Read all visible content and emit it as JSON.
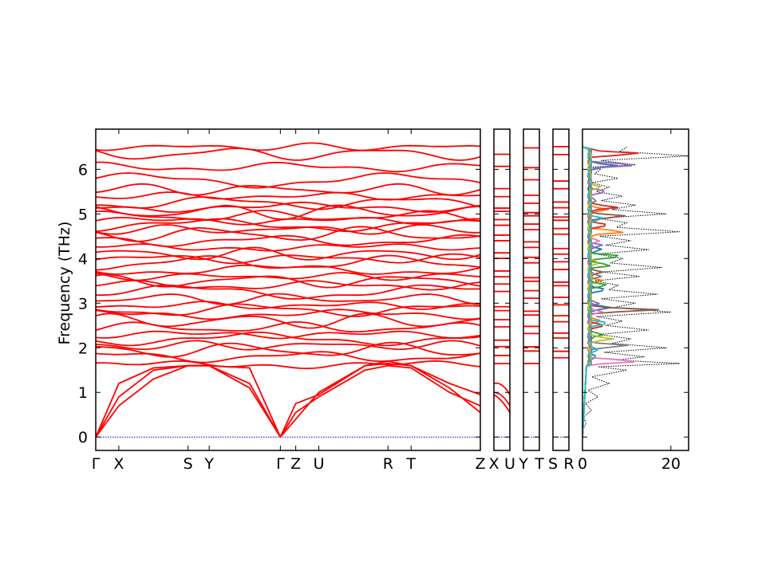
{
  "chart_data": [
    {
      "type": "line",
      "panel": "band-main",
      "ylabel": "Frequency (THz)",
      "ylim": [
        -0.3,
        6.9
      ],
      "yticks": [
        0,
        1,
        2,
        3,
        4,
        5,
        6
      ],
      "x_segments": [
        "Γ",
        "X",
        "S",
        "Y",
        "Γ",
        "Z",
        "U",
        "R",
        "T",
        "Z"
      ],
      "high_symmetry_positions": [
        0,
        0.06,
        0.24,
        0.295,
        0.48,
        0.52,
        0.58,
        0.76,
        0.82,
        1.0
      ],
      "line_color": "#ff0000",
      "zero_line_color": "#0000cc",
      "acoustic_branches": {
        "x": [
          0,
          0.06,
          0.15,
          0.24,
          0.295,
          0.4,
          0.48,
          0.52,
          0.58,
          0.7,
          0.76,
          0.82,
          0.92,
          1.0
        ],
        "series": [
          {
            "values": [
              0.0,
              1.2,
              1.55,
              1.6,
              1.6,
              1.55,
              0.0,
              0.75,
              0.95,
              1.6,
              1.65,
              1.6,
              1.1,
              0.55
            ]
          },
          {
            "values": [
              0.0,
              0.9,
              1.5,
              1.6,
              1.6,
              1.2,
              0.0,
              0.55,
              0.9,
              1.5,
              1.6,
              1.55,
              1.0,
              0.7
            ]
          },
          {
            "values": [
              0.0,
              0.7,
              1.3,
              1.6,
              1.6,
              1.1,
              0.0,
              0.4,
              1.0,
              1.6,
              1.7,
              1.6,
              1.2,
              0.95
            ]
          }
        ]
      },
      "optical_levels": [
        1.62,
        1.8,
        1.95,
        2.05,
        2.2,
        2.3,
        2.45,
        2.6,
        2.75,
        2.85,
        2.95,
        3.1,
        3.25,
        3.4,
        3.5,
        3.6,
        3.75,
        3.9,
        4.0,
        4.1,
        4.25,
        4.4,
        4.55,
        4.65,
        4.75,
        4.85,
        4.95,
        5.05,
        5.15,
        5.25,
        5.4,
        5.55,
        5.75,
        6.05,
        6.35,
        6.5
      ]
    },
    {
      "type": "line",
      "panel": "band-XU",
      "x_segments": [
        "X",
        "U"
      ]
    },
    {
      "type": "line",
      "panel": "band-YT",
      "x_segments": [
        "Y",
        "T"
      ]
    },
    {
      "type": "line",
      "panel": "band-SR",
      "x_segments": [
        "S",
        "R"
      ]
    },
    {
      "type": "line",
      "panel": "dos",
      "xlim": [
        0,
        24
      ],
      "xticks": [
        0,
        20
      ],
      "total_dos_color": "#000000",
      "total_dos": {
        "freq": [
          0.0,
          0.3,
          0.6,
          0.9,
          1.2,
          1.5,
          1.65,
          1.8,
          2.0,
          2.2,
          2.4,
          2.6,
          2.8,
          3.0,
          3.2,
          3.4,
          3.6,
          3.8,
          4.0,
          4.2,
          4.4,
          4.6,
          4.8,
          5.0,
          5.2,
          5.4,
          5.6,
          5.8,
          6.0,
          6.1,
          6.3,
          6.5
        ],
        "values": [
          0.0,
          0.8,
          2.0,
          3.5,
          6.0,
          10.0,
          22.0,
          14.0,
          19.0,
          11.0,
          15.0,
          9.0,
          20.0,
          12.0,
          17.0,
          8.0,
          13.0,
          18.0,
          9.0,
          15.0,
          11.0,
          22.0,
          10.0,
          19.0,
          12.0,
          9.0,
          6.0,
          8.0,
          4.0,
          12.0,
          24.0,
          10.0
        ]
      },
      "partial_dos": [
        {
          "color": "#1f77b4",
          "peaks": [
            [
              6.08,
              6.0
            ],
            [
              4.2,
              2.5
            ],
            [
              3.3,
              3.5
            ],
            [
              2.9,
              4.5
            ],
            [
              1.8,
              2.0
            ]
          ]
        },
        {
          "color": "#ff7f0e",
          "peaks": [
            [
              4.6,
              8.0
            ],
            [
              3.5,
              3.0
            ],
            [
              2.6,
              2.8
            ],
            [
              5.1,
              4.0
            ]
          ]
        },
        {
          "color": "#2ca02c",
          "peaks": [
            [
              4.05,
              7.5
            ],
            [
              3.85,
              5.0
            ],
            [
              3.4,
              4.0
            ],
            [
              2.3,
              3.0
            ]
          ]
        },
        {
          "color": "#d62728",
          "peaks": [
            [
              6.35,
              12.0
            ],
            [
              5.15,
              6.0
            ],
            [
              4.75,
              4.0
            ],
            [
              2.5,
              3.0
            ]
          ]
        },
        {
          "color": "#9467bd",
          "peaks": [
            [
              6.1,
              11.0
            ],
            [
              5.5,
              3.5
            ],
            [
              4.3,
              3.0
            ],
            [
              3.0,
              2.5
            ]
          ]
        },
        {
          "color": "#8c564b",
          "peaks": [
            [
              2.85,
              16.0
            ],
            [
              4.95,
              8.0
            ],
            [
              3.7,
              3.0
            ]
          ]
        },
        {
          "color": "#e377c2",
          "peaks": [
            [
              1.7,
              11.0
            ],
            [
              2.8,
              3.0
            ],
            [
              4.4,
              2.0
            ]
          ]
        },
        {
          "color": "#7f7f7f",
          "peaks": [
            [
              2.05,
              9.0
            ],
            [
              3.6,
              2.5
            ],
            [
              5.3,
              2.0
            ]
          ]
        },
        {
          "color": "#bcbd22",
          "peaks": [
            [
              2.2,
              5.0
            ],
            [
              5.6,
              3.0
            ],
            [
              3.9,
              2.0
            ]
          ]
        },
        {
          "color": "#17becf",
          "peaks": [
            [
              2.55,
              4.0
            ],
            [
              4.9,
              3.0
            ],
            [
              1.95,
              2.0
            ]
          ]
        }
      ]
    }
  ]
}
